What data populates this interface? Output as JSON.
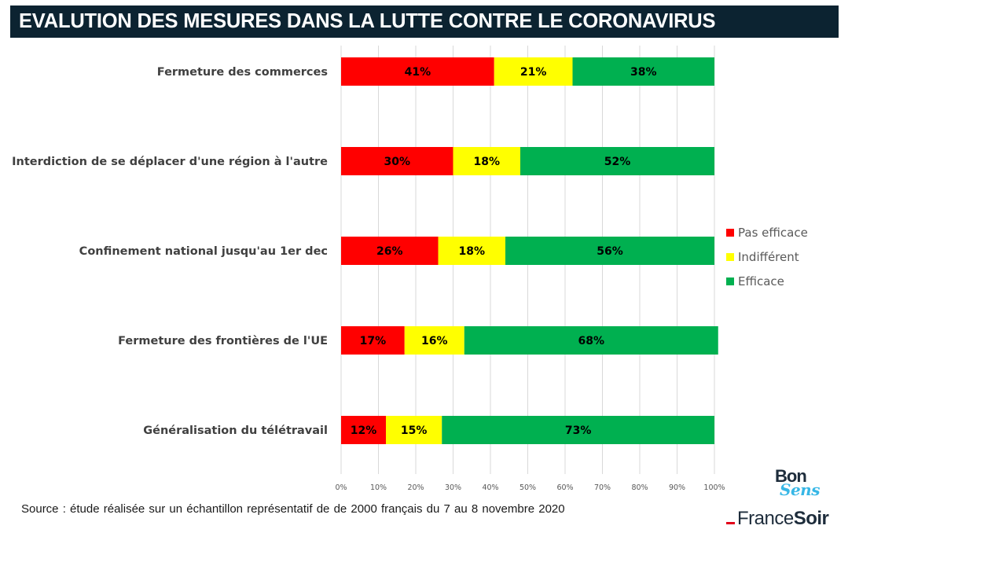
{
  "title": "EVALUTION DES MESURES DANS LA LUTTE CONTRE LE CORONAVIRUS",
  "source": "Source : étude réalisée sur un échantillon représentatif de de 2000 français du 7 au 8 novembre 2020",
  "logos": {
    "bonsens_top": "Bon",
    "bonsens_bottom": "Sens",
    "francesoir_light": "France",
    "francesoir_bold": "Soir"
  },
  "chart_data": {
    "type": "bar",
    "orientation": "horizontal",
    "stacked": true,
    "percent_stacked": true,
    "categories": [
      "Fermeture des commerces",
      "Interdiction de se déplacer d'une région à l'autre",
      "Confinement national jusqu'au 1er dec",
      "Fermeture des frontières de l'UE",
      "Généralisation du télétravail"
    ],
    "series": [
      {
        "name": "Pas efficace",
        "color": "#ff0000",
        "values": [
          41,
          30,
          26,
          17,
          12
        ]
      },
      {
        "name": "Indifférent",
        "color": "#ffff00",
        "values": [
          21,
          18,
          18,
          16,
          15
        ]
      },
      {
        "name": "Efficace",
        "color": "#00b050",
        "values": [
          38,
          52,
          56,
          68,
          73
        ]
      }
    ],
    "value_format": "{v}%",
    "xlim": [
      0,
      100
    ],
    "xticks": [
      "0%",
      "10%",
      "20%",
      "30%",
      "40%",
      "50%",
      "60%",
      "70%",
      "80%",
      "90%",
      "100%"
    ],
    "grid": "vertical",
    "legend_position": "right"
  }
}
